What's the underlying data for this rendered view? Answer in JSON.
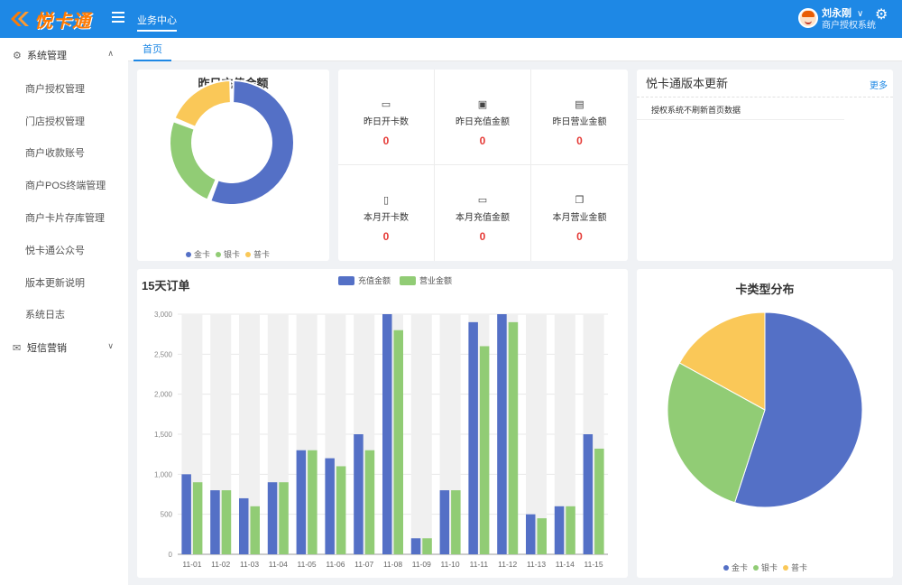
{
  "app": {
    "logo_text": "悦卡通",
    "top_tab": "业务中心",
    "user_name": "刘永刚",
    "user_role": "商户授权系统",
    "user_caret": "∨",
    "settings_icon": "gear-icon"
  },
  "sidebar": {
    "groups": [
      {
        "label": "系统管理",
        "icon": "settings-icon",
        "arrow": "∧",
        "items": [
          "商户授权管理",
          "门店授权管理",
          "商户收款账号",
          "商户POS终端管理",
          "商户卡片存库管理",
          "悦卡通公众号",
          "版本更新说明",
          "系统日志"
        ]
      },
      {
        "label": "短信营销",
        "icon": "mail-icon",
        "arrow": "∨",
        "items": []
      }
    ]
  },
  "tabs": {
    "home": "首页"
  },
  "yesterday": {
    "title": "昨日充值金额",
    "legend": [
      "金卡",
      "银卡",
      "普卡"
    ]
  },
  "stats": [
    {
      "label": "昨日开卡数",
      "value": "0",
      "icon": "card-icon"
    },
    {
      "label": "昨日充值金额",
      "value": "0",
      "icon": "recharge-icon"
    },
    {
      "label": "昨日营业金额",
      "value": "0",
      "icon": "document-icon"
    },
    {
      "label": "本月开卡数",
      "value": "0",
      "icon": "card-icon"
    },
    {
      "label": "本月充值金额",
      "value": "0",
      "icon": "recharge-icon"
    },
    {
      "label": "本月营业金额",
      "value": "0",
      "icon": "copy-icon"
    }
  ],
  "news": {
    "title": "悦卡通版本更新",
    "more": "更多",
    "items": [
      "授权系统不刷新首页数据"
    ]
  },
  "orders": {
    "title": "15天订单"
  },
  "pie": {
    "title": "卡类型分布",
    "legend": [
      "金卡",
      "银卡",
      "普卡"
    ]
  },
  "colors": {
    "primary": "#1e88e5",
    "gold": "#5470c6",
    "silver": "#91cc75",
    "normal": "#fac858",
    "value_red": "#e53935"
  },
  "chart_data": [
    {
      "type": "pie",
      "chart": "donut",
      "title": "昨日充值金额",
      "slices": [
        {
          "name": "金卡",
          "value": 56
        },
        {
          "name": "银卡",
          "value": 25
        },
        {
          "name": "普卡",
          "value": 19
        }
      ],
      "legend_position": "bottom"
    },
    {
      "type": "bar",
      "title": "15天订单",
      "categories": [
        "11-01",
        "11-02",
        "11-03",
        "11-04",
        "11-05",
        "11-06",
        "11-07",
        "11-08",
        "11-09",
        "11-10",
        "11-11",
        "11-12",
        "11-13",
        "11-14",
        "11-15"
      ],
      "series": [
        {
          "name": "充值金额",
          "values": [
            1000,
            800,
            700,
            900,
            1300,
            1200,
            1500,
            3000,
            200,
            800,
            2900,
            3000,
            500,
            600,
            1500
          ]
        },
        {
          "name": "营业金额",
          "values": [
            900,
            800,
            600,
            900,
            1300,
            1100,
            1300,
            2800,
            200,
            800,
            2600,
            2900,
            450,
            600,
            1320
          ]
        }
      ],
      "background_bar_max": 3000,
      "ylim": [
        0,
        3000
      ],
      "yticks": [
        0,
        500,
        1000,
        1500,
        2000,
        2500,
        3000
      ],
      "ytick_labels": [
        "0",
        "500",
        "1,000",
        "1,500",
        "2,000",
        "2,500",
        "3,000"
      ],
      "grid": true,
      "legend_position": "top"
    },
    {
      "type": "pie",
      "title": "卡类型分布",
      "slices": [
        {
          "name": "金卡",
          "value": 55
        },
        {
          "name": "银卡",
          "value": 28
        },
        {
          "name": "普卡",
          "value": 17
        }
      ],
      "legend_position": "bottom"
    }
  ]
}
